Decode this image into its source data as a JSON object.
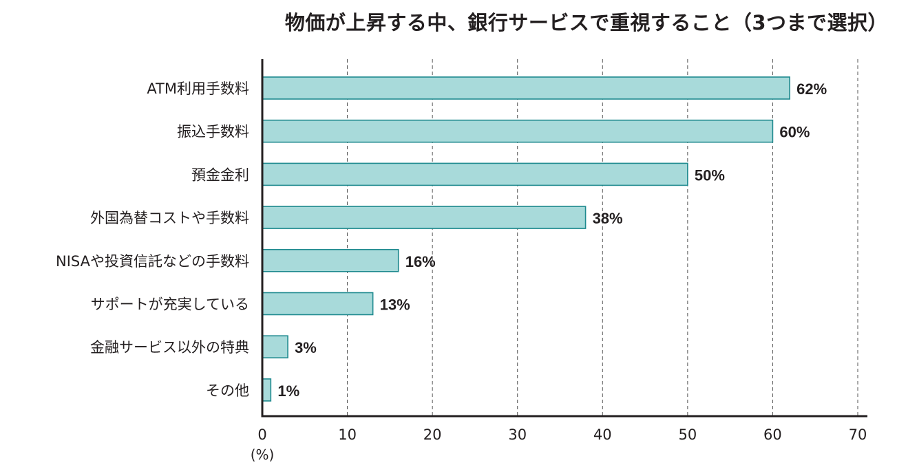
{
  "chart_data": {
    "type": "bar",
    "orientation": "horizontal",
    "title": "物価が上昇する中、銀行サービスで重視すること（3つまで選択）",
    "categories": [
      "ATM利用手数料",
      "振込手数料",
      "預金金利",
      "外国為替コストや手数料",
      "NISAや投資信託などの手数料",
      "サポートが充実している",
      "金融サービス以外の特典",
      "その他"
    ],
    "values": [
      62,
      60,
      50,
      38,
      16,
      13,
      3,
      1
    ],
    "value_labels": [
      "62%",
      "60%",
      "50%",
      "38%",
      "16%",
      "13%",
      "3%",
      "1%"
    ],
    "xlim": [
      0,
      70
    ],
    "xticks": [
      0,
      10,
      20,
      30,
      40,
      50,
      60,
      70
    ],
    "unit_label": "(%)",
    "grid": "vertical-dashed",
    "colors": {
      "bar_fill": "#a8dada",
      "bar_stroke": "#1f8a8f",
      "axis": "#231f20",
      "grid": "#555555"
    }
  }
}
